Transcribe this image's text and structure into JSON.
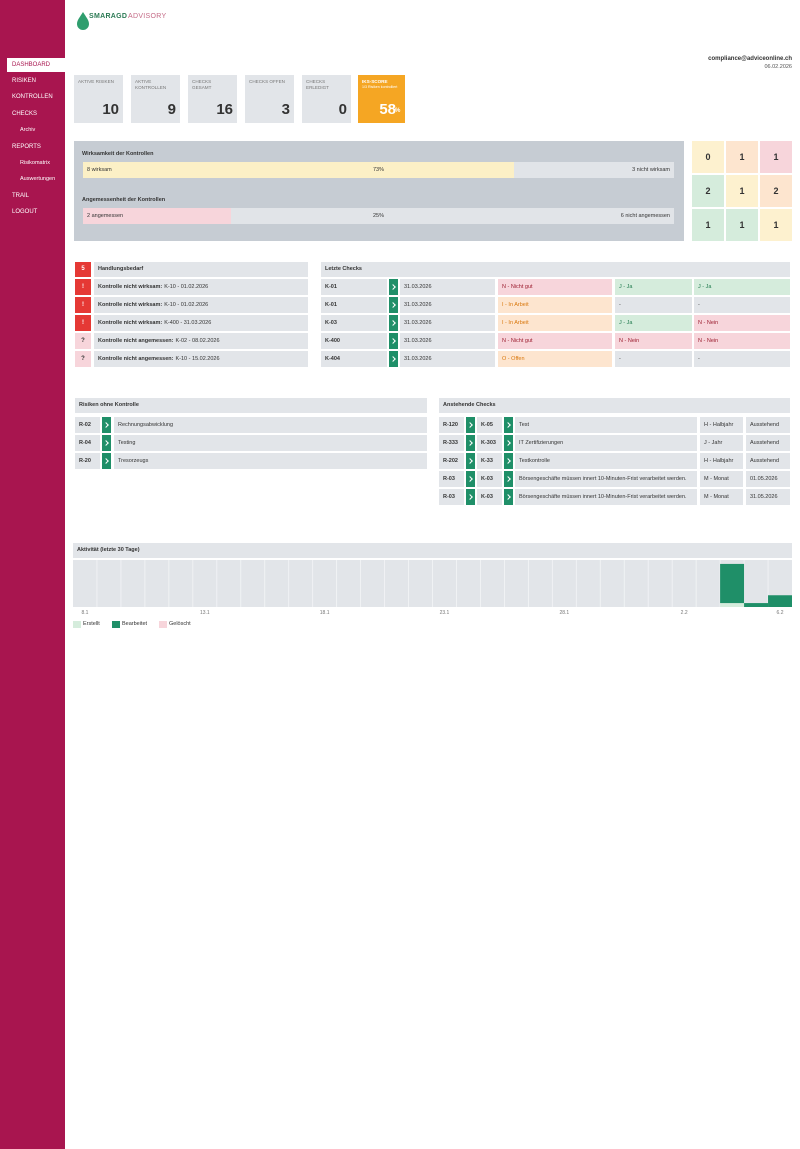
{
  "logo": {
    "brand": "SMARAGD",
    "suffix": "ADVISORY"
  },
  "nav": [
    {
      "label": "DASHBOARD",
      "active": true
    },
    {
      "label": "RISIKEN"
    },
    {
      "label": "KONTROLLEN"
    },
    {
      "label": "CHECKS"
    },
    {
      "label": "Archiv",
      "sub": true
    },
    {
      "label": "REPORTS"
    },
    {
      "label": "Risikomatrix",
      "sub": true
    },
    {
      "label": "Auswertungen",
      "sub": true
    },
    {
      "label": "TRAIL"
    },
    {
      "label": "LOGOUT"
    }
  ],
  "user": {
    "email": "compliance@adviceonline.ch",
    "date": "06.02.2026"
  },
  "kpis": [
    {
      "label": "AKTIVE RISIKEN",
      "value": 10
    },
    {
      "label": "AKTIVE KONTROLLEN",
      "value": 9
    },
    {
      "label": "CHECKS GESAMT",
      "value": 16
    },
    {
      "label": "CHECKS OFFEN",
      "value": 3
    },
    {
      "label": "CHECKS ERLEDIGT",
      "value": 0
    },
    {
      "label": "IKS-SCORE",
      "note": "1/3 Risiken kontrolliert",
      "value": 58,
      "unit": "%",
      "highlight": true
    }
  ],
  "effectiveness": [
    {
      "title": "Wirksamkeit der Kontrollen",
      "left": "8 wirksam",
      "share": {
        "value": 73,
        "label": "73%"
      },
      "right": "3 nicht wirksam",
      "color": "#fcf0c6"
    },
    {
      "title": "Angemessenheit der Kontrollen",
      "left": "2 angemessen",
      "share": {
        "value": 25,
        "label": "25%"
      },
      "right": "6 nicht angemessen",
      "color": "#f7d5db"
    }
  ],
  "matrix": [
    [
      {
        "value": 0,
        "color": "#fdf1cf"
      },
      {
        "value": 1,
        "color": "#fde5cf"
      },
      {
        "value": 1,
        "color": "#f7d5db"
      }
    ],
    [
      {
        "value": 2,
        "color": "#d5ecdc"
      },
      {
        "value": 1,
        "color": "#fdf1cf"
      },
      {
        "value": 2,
        "color": "#fde5cf"
      }
    ],
    [
      {
        "value": 1,
        "color": "#d5ecdc"
      },
      {
        "value": 1,
        "color": "#d5ecdc"
      },
      {
        "value": 1,
        "color": "#fdf1cf"
      }
    ]
  ],
  "actions": {
    "count": 5,
    "title": "Handlungsbedarf",
    "items": [
      {
        "icon": "!",
        "level": "high",
        "label": "Kontrolle nicht wirksam:",
        "detail": "K-10 - 01.02.2026"
      },
      {
        "icon": "!",
        "level": "high",
        "label": "Kontrolle nicht wirksam:",
        "detail": "K-10 - 01.02.2026"
      },
      {
        "icon": "!",
        "level": "high",
        "label": "Kontrolle nicht wirksam:",
        "detail": "K-400 - 31.03.2026"
      },
      {
        "icon": "?",
        "level": "low",
        "label": "Kontrolle nicht angemessen:",
        "detail": "K-02 - 08.02.2026"
      },
      {
        "icon": "?",
        "level": "low",
        "label": "Kontrolle nicht angemessen:",
        "detail": "K-10 - 15.02.2026"
      }
    ]
  },
  "last_checks": {
    "title": "Letzte Checks",
    "rows": [
      {
        "control": "K-01",
        "date": "31.03.2026",
        "results": [
          {
            "text": "N - Nicht gut",
            "tone": "bad"
          },
          {
            "text": "J - Ja",
            "tone": "good"
          },
          {
            "text": "J - Ja",
            "tone": "good"
          }
        ]
      },
      {
        "control": "K-01",
        "date": "31.03.2026",
        "results": [
          {
            "text": "I - In Arbeit",
            "tone": "wip"
          },
          {
            "text": "-",
            "tone": "none"
          },
          {
            "text": "-",
            "tone": "none"
          }
        ]
      },
      {
        "control": "K-03",
        "date": "31.03.2026",
        "results": [
          {
            "text": "I - In Arbeit",
            "tone": "wip"
          },
          {
            "text": "J - Ja",
            "tone": "good"
          },
          {
            "text": "N - Nein",
            "tone": "bad"
          }
        ]
      },
      {
        "control": "K-400",
        "date": "31.03.2026",
        "results": [
          {
            "text": "N - Nicht gut",
            "tone": "bad"
          },
          {
            "text": "N - Nein",
            "tone": "bad"
          },
          {
            "text": "N - Nein",
            "tone": "bad"
          }
        ]
      },
      {
        "control": "K-404",
        "date": "31.03.2026",
        "results": [
          {
            "text": "O - Offen",
            "tone": "wip"
          },
          {
            "text": "-",
            "tone": "none"
          },
          {
            "text": "-",
            "tone": "none"
          }
        ]
      }
    ]
  },
  "risks_without_control": {
    "title": "Risiken ohne Kontrolle",
    "rows": [
      {
        "risk": "R-02",
        "name": "Rechnungsabwicklung"
      },
      {
        "risk": "R-04",
        "name": "Testing"
      },
      {
        "risk": "R-20",
        "name": "Tresorzeugs"
      }
    ]
  },
  "pending_checks": {
    "title": "Anstehende Checks",
    "rows": [
      {
        "risk": "R-120",
        "control": "K-05",
        "name": "Test",
        "frequency": "H - Halbjahr",
        "due": "Ausstehend"
      },
      {
        "risk": "R-333",
        "control": "K-303",
        "name": "IT Zertifizierungen",
        "frequency": "J - Jahr",
        "due": "Ausstehend"
      },
      {
        "risk": "R-202",
        "control": "K-33",
        "name": "Testkontrolle",
        "frequency": "H - Halbjahr",
        "due": "Ausstehend"
      },
      {
        "risk": "R-03",
        "control": "K-03",
        "name": "Börsengeschäfte müssen innert 10-Minuten-Frist verarbeitet werden.",
        "frequency": "M - Monat",
        "due": "01.05.2026"
      },
      {
        "risk": "R-03",
        "control": "K-03",
        "name": "Börsengeschäfte müssen innert 10-Minuten-Frist verarbeitet werden.",
        "frequency": "M - Monat",
        "due": "31.05.2026"
      }
    ]
  },
  "chart_data": {
    "type": "bar",
    "stacked": true,
    "title": "Aktivität (letzte 30 Tage)",
    "categories": [
      "8.1",
      null,
      null,
      null,
      null,
      "13.1",
      null,
      null,
      null,
      null,
      "18.1",
      null,
      null,
      null,
      null,
      "23.1",
      null,
      null,
      null,
      null,
      "28.1",
      null,
      null,
      null,
      null,
      "2.2",
      null,
      null,
      null,
      "6.2"
    ],
    "series": [
      {
        "name": "Erstellt",
        "color": "#d5ecdc",
        "values": [
          0,
          0,
          0,
          0,
          0,
          0,
          0,
          0,
          0,
          0,
          0,
          0,
          0,
          0,
          0,
          0,
          0,
          0,
          0,
          0,
          0,
          0,
          0,
          0,
          0,
          0,
          0,
          1,
          0,
          0
        ]
      },
      {
        "name": "Bearbeitet",
        "color": "#1f8f68",
        "values": [
          0,
          0,
          0,
          0,
          0,
          0,
          0,
          0,
          0,
          0,
          0,
          0,
          0,
          0,
          0,
          0,
          0,
          0,
          0,
          0,
          0,
          0,
          0,
          0,
          0,
          0,
          0,
          10,
          1,
          3
        ]
      },
      {
        "name": "Gelöscht",
        "color": "#f7d5db",
        "values": [
          0,
          0,
          0,
          0,
          0,
          0,
          0,
          0,
          0,
          0,
          0,
          0,
          0,
          0,
          0,
          0,
          0,
          0,
          0,
          0,
          0,
          0,
          0,
          0,
          0,
          0,
          0,
          0,
          0,
          0
        ]
      }
    ],
    "ylim": [
      0,
      12
    ],
    "grid": true
  }
}
